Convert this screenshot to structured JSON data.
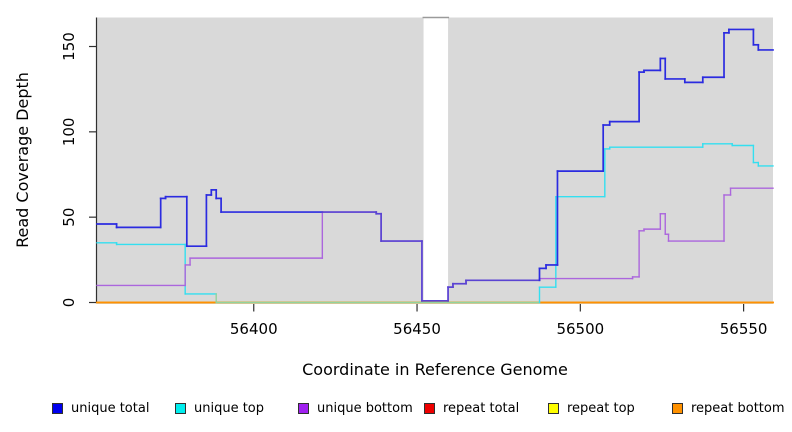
{
  "chart_data": {
    "type": "line",
    "step": true,
    "title": "",
    "xlabel": "Coordinate in Reference Genome",
    "ylabel": "Read Coverage Depth",
    "x_ticks": [
      56400,
      56450,
      56500,
      56550
    ],
    "y_ticks": [
      0,
      50,
      100,
      150
    ],
    "xlim": [
      56352,
      56559
    ],
    "ylim": [
      0,
      167
    ],
    "grid": false,
    "legend_position": "bottom",
    "plot_bg": "#d9d9d9",
    "gap_band": {
      "from": 56452,
      "to": 56459.5,
      "fill": "#ffffff",
      "top_border": "#9a9a9a"
    },
    "axis_color": "#303030",
    "series": [
      {
        "name": "unique total",
        "color": "#0000ee",
        "line_color": "#2b2be0",
        "blend_with": "unique bottom",
        "blend_color": "#5a44d2",
        "width": 1.7,
        "points": [
          [
            56352,
            46
          ],
          [
            56358,
            44
          ],
          [
            56371.5,
            61
          ],
          [
            56373,
            62
          ],
          [
            56379.5,
            33
          ],
          [
            56385.5,
            63
          ],
          [
            56387,
            66
          ],
          [
            56388.5,
            61
          ],
          [
            56390,
            53
          ],
          [
            56421,
            53
          ],
          [
            56437.5,
            52
          ],
          [
            56439,
            36
          ],
          [
            56451.5,
            1
          ],
          [
            56459.5,
            9
          ],
          [
            56461,
            11
          ],
          [
            56465,
            13
          ],
          [
            56487.5,
            20
          ],
          [
            56489.5,
            22
          ],
          [
            56493,
            77
          ],
          [
            56507,
            104
          ],
          [
            56509,
            106
          ],
          [
            56518,
            135
          ],
          [
            56519.5,
            136
          ],
          [
            56524.5,
            143
          ],
          [
            56526,
            131
          ],
          [
            56532,
            129
          ],
          [
            56537.5,
            132
          ],
          [
            56544,
            158
          ],
          [
            56545.5,
            160
          ],
          [
            56553,
            151
          ],
          [
            56554.5,
            148
          ]
        ]
      },
      {
        "name": "unique top",
        "color": "#00eeee",
        "line_color": "#33dff0",
        "zero_blend_color": "#92d49c",
        "width": 1.4,
        "points": [
          [
            56352,
            35
          ],
          [
            56358,
            34
          ],
          [
            56379,
            5
          ],
          [
            56388.5,
            0
          ],
          [
            56487.5,
            9
          ],
          [
            56492.5,
            62
          ],
          [
            56507.5,
            90
          ],
          [
            56509,
            91
          ],
          [
            56537.5,
            93
          ],
          [
            56546.5,
            92
          ],
          [
            56553,
            82
          ],
          [
            56554.5,
            80
          ]
        ]
      },
      {
        "name": "unique bottom",
        "color": "#a020f0",
        "line_color": "#ab66dd",
        "width": 1.4,
        "points": [
          [
            56352,
            10
          ],
          [
            56379,
            22
          ],
          [
            56380.5,
            26
          ],
          [
            56421,
            53
          ],
          [
            56437.5,
            52
          ],
          [
            56439,
            36
          ],
          [
            56451.5,
            1
          ],
          [
            56459.5,
            9
          ],
          [
            56461,
            11
          ],
          [
            56465,
            13
          ],
          [
            56487.5,
            14
          ],
          [
            56516,
            15
          ],
          [
            56518,
            42
          ],
          [
            56519.5,
            43
          ],
          [
            56524.5,
            52
          ],
          [
            56526,
            40
          ],
          [
            56527,
            36
          ],
          [
            56544,
            63
          ],
          [
            56546,
            67
          ]
        ]
      },
      {
        "name": "repeat total",
        "color": "#ee0000",
        "line_color": "#ee0000",
        "width": 1.4,
        "points": [
          [
            56352,
            0
          ]
        ]
      },
      {
        "name": "repeat top",
        "color": "#ffff00",
        "line_color": "#f2e400",
        "width": 1.4,
        "points": [
          [
            56352,
            0
          ]
        ]
      },
      {
        "name": "repeat bottom",
        "color": "#ff9100",
        "line_color": "#ff9100",
        "width": 1.8,
        "points": [
          [
            56352,
            0
          ]
        ]
      }
    ]
  }
}
